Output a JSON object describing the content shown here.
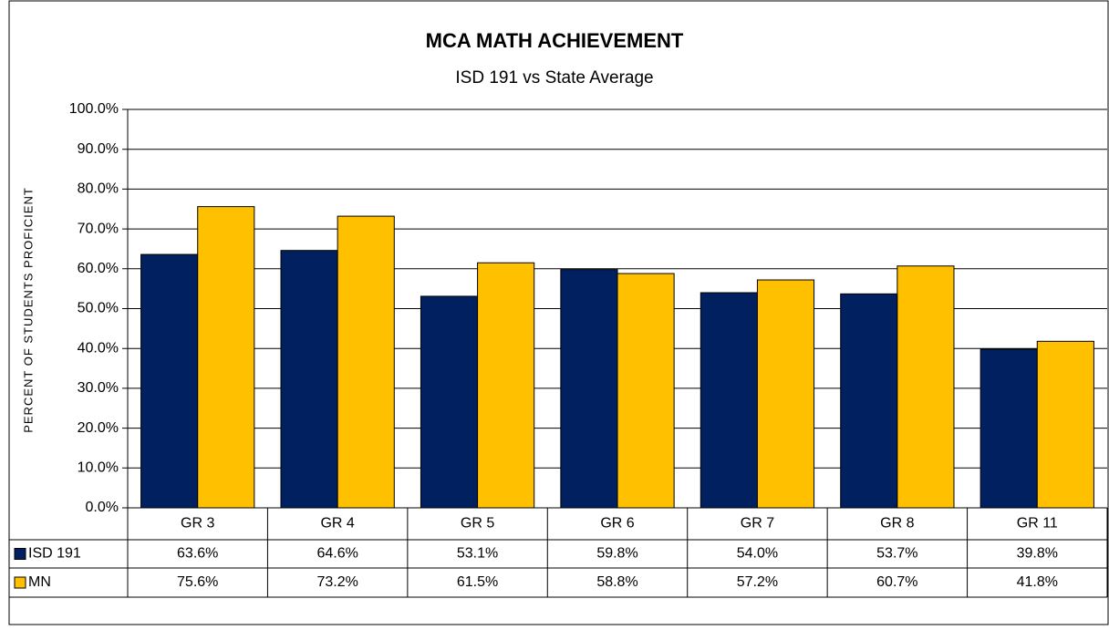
{
  "chart_data": {
    "type": "bar",
    "title": "MCA MATH ACHIEVEMENT",
    "subtitle": "ISD 191 vs State Average",
    "y_label": "PERCENT OF STUDENTS PROFICIENT",
    "categories": [
      "GR 3",
      "GR 4",
      "GR 5",
      "GR 6",
      "GR 7",
      "GR 8",
      "GR 11"
    ],
    "series": [
      {
        "name": "ISD 191",
        "color": "#002060",
        "values": [
          63.6,
          64.6,
          53.1,
          59.8,
          54.0,
          53.7,
          39.8
        ],
        "value_labels": [
          "63.6%",
          "64.6%",
          "53.1%",
          "59.8%",
          "54.0%",
          "53.7%",
          "39.8%"
        ]
      },
      {
        "name": "MN",
        "color": "#FFC000",
        "values": [
          75.6,
          73.2,
          61.5,
          58.8,
          57.2,
          60.7,
          41.8
        ],
        "value_labels": [
          "75.6%",
          "73.2%",
          "61.5%",
          "58.8%",
          "57.2%",
          "60.7%",
          "41.8%"
        ]
      }
    ],
    "ylim": [
      0,
      100
    ],
    "yticks": [
      {
        "value": 0,
        "label": "0.0%"
      },
      {
        "value": 10,
        "label": "10.0%"
      },
      {
        "value": 20,
        "label": "20.0%"
      },
      {
        "value": 30,
        "label": "30.0%"
      },
      {
        "value": 40,
        "label": "40.0%"
      },
      {
        "value": 50,
        "label": "50.0%"
      },
      {
        "value": 60,
        "label": "60.0%"
      },
      {
        "value": 70,
        "label": "70.0%"
      },
      {
        "value": 80,
        "label": "80.0%"
      },
      {
        "value": 90,
        "label": "90.0%"
      },
      {
        "value": 100,
        "label": "100.0%"
      }
    ],
    "grid": true
  }
}
